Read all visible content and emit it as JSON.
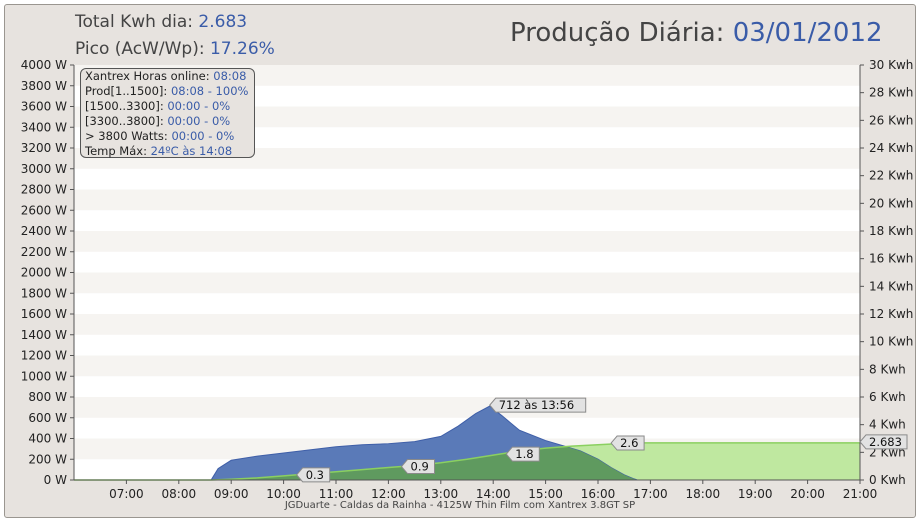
{
  "header": {
    "total_label": "Total Kwh dia:",
    "total_value": "2.683",
    "peak_label": "Pico (AcW/Wp):",
    "peak_value": "17.26%",
    "title_label": "Produção Diária:",
    "title_date": "03/01/2012"
  },
  "info": {
    "online_label": "Xantrex Horas online:",
    "online_value": "08:08",
    "prod_label": "Prod[1..1500]:",
    "prod_value": "08:08 - 100%",
    "r2_label": "[1500..3300]:",
    "r2_value": "00:00 - 0%",
    "r3_label": "[3300..3800]:",
    "r3_value": "00:00 - 0%",
    "r4_label": "> 3800 Watts:",
    "r4_value": "00:00 - 0%",
    "temp_label": "Temp Máx:",
    "temp_value": "24ºC às 14:08"
  },
  "footer": "JGDuarte  -  Caldas da Rainha  -  4125W Thin Film com Xantrex 3.8GT SP",
  "colors": {
    "power_fill": "#5a7ab8",
    "power_line": "#3f5fa8",
    "energy_fill": "#bfe8a0",
    "energy_line": "#8bd060",
    "overlap": "#5f9a5f"
  },
  "chart_data": {
    "type": "area",
    "x_unit": "time",
    "xlim": [
      "06:00",
      "21:00"
    ],
    "x_ticks": [
      "07:00",
      "08:00",
      "09:00",
      "10:00",
      "11:00",
      "12:00",
      "13:00",
      "14:00",
      "15:00",
      "16:00",
      "17:00",
      "18:00",
      "19:00",
      "20:00",
      "21:00"
    ],
    "y_left_ticks": [
      "0 W",
      "200 W",
      "400 W",
      "600 W",
      "800 W",
      "1000 W",
      "1200 W",
      "1400 W",
      "1600 W",
      "1800 W",
      "2000 W",
      "2200 W",
      "2400 W",
      "2600 W",
      "2800 W",
      "3000 W",
      "3200 W",
      "3400 W",
      "3600 W",
      "3800 W",
      "4000 W"
    ],
    "y_left_lim": [
      0,
      4000
    ],
    "y_right_ticks": [
      "0 Kwh",
      "2 Kwh",
      "4 Kwh",
      "6 Kwh",
      "8 Kwh",
      "10 Kwh",
      "12 Kwh",
      "14 Kwh",
      "16 Kwh",
      "18 Kwh",
      "20 Kwh",
      "22 Kwh",
      "24 Kwh",
      "26 Kwh",
      "28 Kwh",
      "30 Kwh"
    ],
    "y_right_lim": [
      0,
      30
    ],
    "series": [
      {
        "axis": "left",
        "x": [
          "06:00",
          "08:37",
          "08:45",
          "09:00",
          "09:30",
          "10:00",
          "10:30",
          "11:00",
          "11:30",
          "12:00",
          "12:30",
          "13:00",
          "13:20",
          "13:40",
          "13:56",
          "14:10",
          "14:30",
          "15:00",
          "15:20",
          "15:40",
          "16:00",
          "16:15",
          "16:30",
          "16:40",
          "16:45",
          "21:00"
        ],
        "values": [
          0,
          0,
          110,
          190,
          230,
          260,
          290,
          320,
          340,
          350,
          370,
          420,
          520,
          640,
          712,
          620,
          480,
          380,
          330,
          280,
          200,
          120,
          50,
          15,
          0,
          0
        ]
      },
      {
        "axis": "right",
        "x": [
          "06:00",
          "08:37",
          "09:00",
          "09:30",
          "10:00",
          "10:30",
          "11:00",
          "11:30",
          "12:00",
          "12:30",
          "13:00",
          "13:30",
          "14:00",
          "14:30",
          "15:00",
          "15:30",
          "16:00",
          "16:30",
          "16:45",
          "21:00"
        ],
        "values": [
          0,
          0,
          0.05,
          0.15,
          0.3,
          0.45,
          0.6,
          0.75,
          0.9,
          1.05,
          1.25,
          1.5,
          1.8,
          2.1,
          2.3,
          2.45,
          2.55,
          2.65,
          2.683,
          2.683
        ]
      }
    ],
    "annotations": [
      {
        "x": "13:56",
        "axis": "left",
        "y": 712,
        "text": "712 às 13:56"
      },
      {
        "x": "10:15",
        "axis": "right",
        "y": 0.3,
        "text": "0.3"
      },
      {
        "x": "12:15",
        "axis": "right",
        "y": 0.9,
        "text": "0.9"
      },
      {
        "x": "14:15",
        "axis": "right",
        "y": 1.8,
        "text": "1.8"
      },
      {
        "x": "16:15",
        "axis": "right",
        "y": 2.6,
        "text": "2.6"
      },
      {
        "x": "21:00",
        "axis": "right",
        "y": 2.683,
        "text": "2.683"
      }
    ],
    "grid": true
  }
}
